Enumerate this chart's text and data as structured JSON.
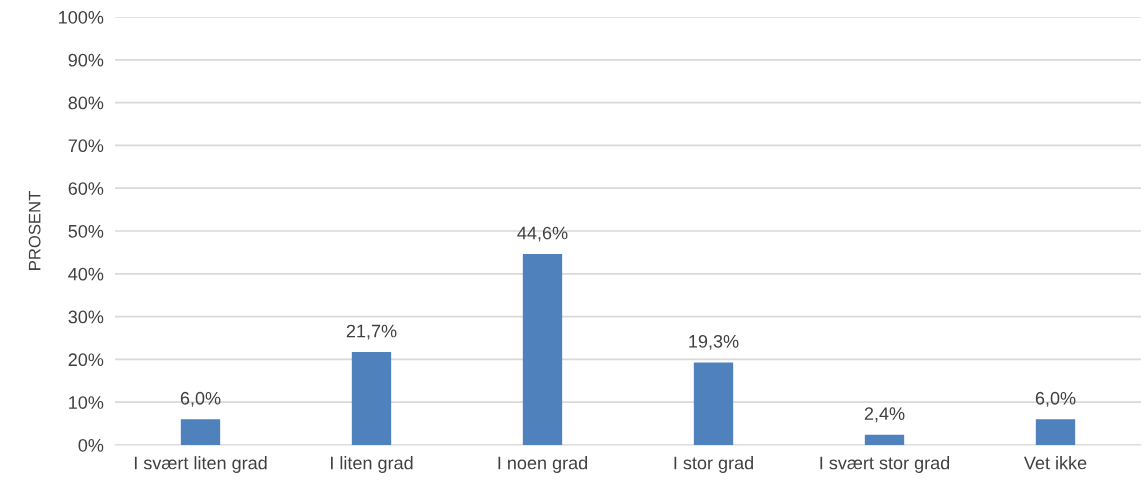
{
  "chart_data": {
    "type": "bar",
    "ylabel": "PROSENT",
    "categories": [
      "I svært liten grad",
      "I liten grad",
      "I noen grad",
      "I stor grad",
      "I svært stor grad",
      "Vet ikke"
    ],
    "values": [
      6.0,
      21.7,
      44.6,
      19.3,
      2.4,
      6.0
    ],
    "value_labels": [
      "6,0%",
      "21,7%",
      "44,6%",
      "19,3%",
      "2,4%",
      "6,0%"
    ],
    "color": "#4f81bd",
    "ylim": [
      0,
      100
    ],
    "yticks": [
      {
        "value": 0,
        "label": "0%"
      },
      {
        "value": 10,
        "label": "10%"
      },
      {
        "value": 20,
        "label": "20%"
      },
      {
        "value": 30,
        "label": "30%"
      },
      {
        "value": 40,
        "label": "40%"
      },
      {
        "value": 50,
        "label": "50%"
      },
      {
        "value": 60,
        "label": "60%"
      },
      {
        "value": 70,
        "label": "70%"
      },
      {
        "value": 80,
        "label": "80%"
      },
      {
        "value": 90,
        "label": "90%"
      },
      {
        "value": 100,
        "label": "100%"
      }
    ],
    "grid": "y",
    "legend": false
  }
}
